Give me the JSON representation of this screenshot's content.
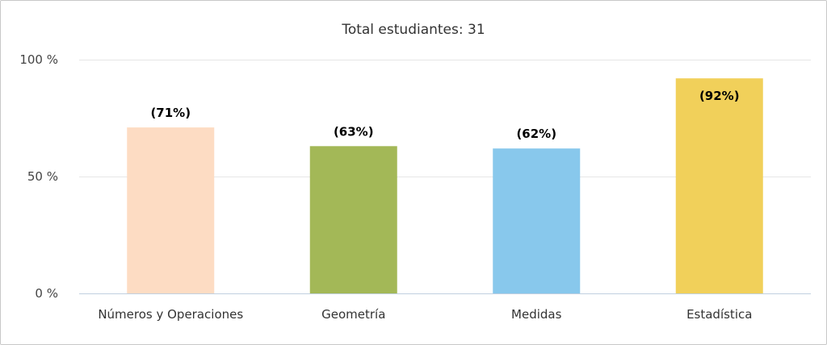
{
  "chart_data": {
    "type": "bar",
    "title": "Total estudiantes: 31",
    "categories": [
      "Números y Operaciones",
      "Geometría",
      "Medidas",
      "Estadística"
    ],
    "values": [
      71,
      63,
      62,
      92
    ],
    "data_labels": [
      "(71%)",
      "(63%)",
      "(62%)",
      "(92%)"
    ],
    "colors": [
      "#fddcc3",
      "#a3b857",
      "#88c8ec",
      "#f1d05a"
    ],
    "ylim": [
      0,
      100
    ],
    "yticks": [
      {
        "value": 0,
        "label": "0 %"
      },
      {
        "value": 50,
        "label": "50 %"
      },
      {
        "value": 100,
        "label": "100 %"
      }
    ],
    "grid": true,
    "legend": false
  }
}
